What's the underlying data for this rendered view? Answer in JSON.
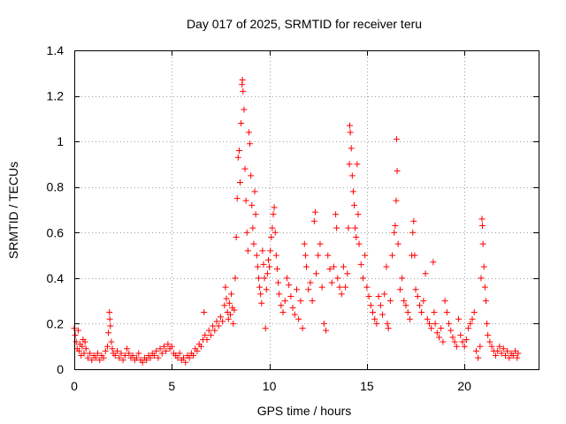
{
  "chart_data": {
    "type": "scatter",
    "title": "Day 017 of 2025, SRMTID for receiver teru",
    "xlabel": "GPS time / hours",
    "ylabel": "SRMTID / TECUs",
    "xlim": [
      0,
      23.8
    ],
    "ylim": [
      0,
      1.4
    ],
    "xticks": [
      0,
      5,
      10,
      15,
      20
    ],
    "xtick_labels": [
      "0",
      "5",
      "10",
      "15",
      "20"
    ],
    "yticks": [
      0,
      0.2,
      0.4,
      0.6,
      0.8,
      1.0,
      1.2,
      1.4
    ],
    "ytick_labels": [
      "0",
      "0.2",
      "0.4",
      "0.6",
      "0.8",
      "1",
      "1.2",
      "1.4"
    ],
    "grid": true,
    "marker": "plus",
    "color": "#ff0000",
    "series": [
      {
        "name": "SRMTID",
        "points": [
          [
            0.0,
            0.18
          ],
          [
            0.05,
            0.15
          ],
          [
            0.1,
            0.12
          ],
          [
            0.15,
            0.09
          ],
          [
            0.2,
            0.17
          ],
          [
            0.25,
            0.08
          ],
          [
            0.3,
            0.11
          ],
          [
            0.35,
            0.06
          ],
          [
            0.4,
            0.1
          ],
          [
            0.45,
            0.13
          ],
          [
            0.5,
            0.07
          ],
          [
            0.55,
            0.12
          ],
          [
            0.6,
            0.09
          ],
          [
            0.7,
            0.05
          ],
          [
            0.8,
            0.07
          ],
          [
            0.9,
            0.04
          ],
          [
            1.0,
            0.06
          ],
          [
            1.1,
            0.05
          ],
          [
            1.2,
            0.07
          ],
          [
            1.3,
            0.04
          ],
          [
            1.4,
            0.06
          ],
          [
            1.5,
            0.05
          ],
          [
            1.6,
            0.08
          ],
          [
            1.7,
            0.1
          ],
          [
            1.75,
            0.16
          ],
          [
            1.8,
            0.25
          ],
          [
            1.82,
            0.22
          ],
          [
            1.85,
            0.19
          ],
          [
            1.9,
            0.12
          ],
          [
            1.95,
            0.09
          ],
          [
            2.0,
            0.07
          ],
          [
            2.1,
            0.06
          ],
          [
            2.2,
            0.08
          ],
          [
            2.3,
            0.05
          ],
          [
            2.4,
            0.07
          ],
          [
            2.5,
            0.04
          ],
          [
            2.6,
            0.06
          ],
          [
            2.7,
            0.09
          ],
          [
            2.8,
            0.07
          ],
          [
            2.9,
            0.05
          ],
          [
            3.0,
            0.06
          ],
          [
            3.1,
            0.04
          ],
          [
            3.2,
            0.05
          ],
          [
            3.3,
            0.07
          ],
          [
            3.4,
            0.04
          ],
          [
            3.5,
            0.03
          ],
          [
            3.6,
            0.05
          ],
          [
            3.7,
            0.04
          ],
          [
            3.8,
            0.06
          ],
          [
            3.9,
            0.05
          ],
          [
            4.0,
            0.07
          ],
          [
            4.1,
            0.06
          ],
          [
            4.2,
            0.08
          ],
          [
            4.3,
            0.05
          ],
          [
            4.4,
            0.09
          ],
          [
            4.5,
            0.07
          ],
          [
            4.6,
            0.1
          ],
          [
            4.7,
            0.08
          ],
          [
            4.8,
            0.11
          ],
          [
            4.9,
            0.09
          ],
          [
            5.0,
            0.1
          ],
          [
            5.1,
            0.07
          ],
          [
            5.2,
            0.06
          ],
          [
            5.3,
            0.05
          ],
          [
            5.4,
            0.07
          ],
          [
            5.5,
            0.04
          ],
          [
            5.6,
            0.05
          ],
          [
            5.7,
            0.03
          ],
          [
            5.8,
            0.06
          ],
          [
            5.9,
            0.05
          ],
          [
            6.0,
            0.07
          ],
          [
            6.1,
            0.06
          ],
          [
            6.2,
            0.09
          ],
          [
            6.3,
            0.08
          ],
          [
            6.4,
            0.11
          ],
          [
            6.5,
            0.1
          ],
          [
            6.6,
            0.13
          ],
          [
            6.65,
            0.25
          ],
          [
            6.7,
            0.15
          ],
          [
            6.8,
            0.13
          ],
          [
            6.9,
            0.17
          ],
          [
            7.0,
            0.15
          ],
          [
            7.1,
            0.19
          ],
          [
            7.2,
            0.17
          ],
          [
            7.3,
            0.21
          ],
          [
            7.4,
            0.19
          ],
          [
            7.5,
            0.23
          ],
          [
            7.6,
            0.21
          ],
          [
            7.7,
            0.28
          ],
          [
            7.75,
            0.36
          ],
          [
            7.8,
            0.31
          ],
          [
            7.85,
            0.25
          ],
          [
            7.9,
            0.22
          ],
          [
            7.95,
            0.29
          ],
          [
            8.0,
            0.24
          ],
          [
            8.05,
            0.33
          ],
          [
            8.1,
            0.27
          ],
          [
            8.15,
            0.2
          ],
          [
            8.2,
            0.26
          ],
          [
            8.25,
            0.4
          ],
          [
            8.3,
            0.58
          ],
          [
            8.35,
            0.75
          ],
          [
            8.4,
            0.93
          ],
          [
            8.45,
            0.96
          ],
          [
            8.5,
            0.82
          ],
          [
            8.55,
            1.08
          ],
          [
            8.6,
            1.25
          ],
          [
            8.62,
            1.27
          ],
          [
            8.65,
            1.22
          ],
          [
            8.7,
            1.14
          ],
          [
            8.75,
            0.88
          ],
          [
            8.8,
            0.74
          ],
          [
            8.85,
            0.6
          ],
          [
            8.9,
            0.52
          ],
          [
            8.95,
            1.04
          ],
          [
            9.0,
            0.99
          ],
          [
            9.05,
            0.85
          ],
          [
            9.1,
            0.72
          ],
          [
            9.15,
            0.62
          ],
          [
            9.2,
            0.55
          ],
          [
            9.25,
            0.78
          ],
          [
            9.3,
            0.68
          ],
          [
            9.35,
            0.5
          ],
          [
            9.4,
            0.45
          ],
          [
            9.45,
            0.4
          ],
          [
            9.5,
            0.36
          ],
          [
            9.55,
            0.33
          ],
          [
            9.6,
            0.29
          ],
          [
            9.65,
            0.52
          ],
          [
            9.7,
            0.46
          ],
          [
            9.75,
            0.4
          ],
          [
            9.8,
            0.18
          ],
          [
            9.85,
            0.35
          ],
          [
            9.9,
            0.42
          ],
          [
            9.95,
            0.48
          ],
          [
            10.0,
            0.45
          ],
          [
            10.05,
            0.52
          ],
          [
            10.1,
            0.58
          ],
          [
            10.15,
            0.62
          ],
          [
            10.2,
            0.68
          ],
          [
            10.25,
            0.71
          ],
          [
            10.3,
            0.6
          ],
          [
            10.35,
            0.5
          ],
          [
            10.4,
            0.44
          ],
          [
            10.45,
            0.38
          ],
          [
            10.5,
            0.33
          ],
          [
            10.6,
            0.28
          ],
          [
            10.7,
            0.25
          ],
          [
            10.8,
            0.3
          ],
          [
            10.9,
            0.4
          ],
          [
            11.0,
            0.37
          ],
          [
            11.1,
            0.32
          ],
          [
            11.2,
            0.27
          ],
          [
            11.3,
            0.24
          ],
          [
            11.4,
            0.35
          ],
          [
            11.5,
            0.22
          ],
          [
            11.6,
            0.3
          ],
          [
            11.7,
            0.18
          ],
          [
            11.8,
            0.55
          ],
          [
            11.85,
            0.5
          ],
          [
            11.9,
            0.45
          ],
          [
            12.0,
            0.35
          ],
          [
            12.1,
            0.38
          ],
          [
            12.2,
            0.3
          ],
          [
            12.3,
            0.65
          ],
          [
            12.35,
            0.69
          ],
          [
            12.4,
            0.42
          ],
          [
            12.5,
            0.5
          ],
          [
            12.6,
            0.55
          ],
          [
            12.7,
            0.36
          ],
          [
            12.8,
            0.2
          ],
          [
            12.9,
            0.17
          ],
          [
            13.0,
            0.5
          ],
          [
            13.1,
            0.44
          ],
          [
            13.2,
            0.38
          ],
          [
            13.3,
            0.45
          ],
          [
            13.4,
            0.68
          ],
          [
            13.45,
            0.62
          ],
          [
            13.5,
            0.4
          ],
          [
            13.6,
            0.36
          ],
          [
            13.7,
            0.33
          ],
          [
            13.8,
            0.45
          ],
          [
            13.9,
            0.36
          ],
          [
            14.0,
            0.42
          ],
          [
            14.05,
            0.62
          ],
          [
            14.1,
            0.9
          ],
          [
            14.12,
            1.07
          ],
          [
            14.15,
            1.04
          ],
          [
            14.2,
            0.97
          ],
          [
            14.25,
            0.85
          ],
          [
            14.3,
            0.78
          ],
          [
            14.35,
            0.72
          ],
          [
            14.4,
            0.62
          ],
          [
            14.45,
            0.58
          ],
          [
            14.5,
            0.9
          ],
          [
            14.55,
            0.68
          ],
          [
            14.6,
            0.55
          ],
          [
            14.7,
            0.46
          ],
          [
            14.8,
            0.4
          ],
          [
            14.9,
            0.5
          ],
          [
            15.0,
            0.36
          ],
          [
            15.1,
            0.32
          ],
          [
            15.2,
            0.28
          ],
          [
            15.3,
            0.25
          ],
          [
            15.4,
            0.22
          ],
          [
            15.5,
            0.2
          ],
          [
            15.6,
            0.32
          ],
          [
            15.7,
            0.28
          ],
          [
            15.8,
            0.24
          ],
          [
            15.9,
            0.33
          ],
          [
            16.0,
            0.45
          ],
          [
            16.05,
            0.2
          ],
          [
            16.1,
            0.18
          ],
          [
            16.2,
            0.3
          ],
          [
            16.3,
            0.5
          ],
          [
            16.4,
            0.6
          ],
          [
            16.45,
            0.63
          ],
          [
            16.5,
            0.74
          ],
          [
            16.52,
            1.01
          ],
          [
            16.55,
            0.87
          ],
          [
            16.6,
            0.55
          ],
          [
            16.7,
            0.35
          ],
          [
            16.8,
            0.4
          ],
          [
            16.9,
            0.3
          ],
          [
            17.0,
            0.28
          ],
          [
            17.1,
            0.25
          ],
          [
            17.2,
            0.22
          ],
          [
            17.3,
            0.5
          ],
          [
            17.35,
            0.6
          ],
          [
            17.4,
            0.65
          ],
          [
            17.45,
            0.5
          ],
          [
            17.5,
            0.35
          ],
          [
            17.6,
            0.32
          ],
          [
            17.7,
            0.28
          ],
          [
            17.8,
            0.25
          ],
          [
            17.9,
            0.3
          ],
          [
            18.0,
            0.42
          ],
          [
            18.1,
            0.22
          ],
          [
            18.2,
            0.2
          ],
          [
            18.3,
            0.18
          ],
          [
            18.4,
            0.47
          ],
          [
            18.45,
            0.25
          ],
          [
            18.5,
            0.2
          ],
          [
            18.6,
            0.16
          ],
          [
            18.7,
            0.14
          ],
          [
            18.8,
            0.18
          ],
          [
            18.9,
            0.12
          ],
          [
            19.0,
            0.3
          ],
          [
            19.1,
            0.25
          ],
          [
            19.2,
            0.2
          ],
          [
            19.3,
            0.17
          ],
          [
            19.4,
            0.14
          ],
          [
            19.5,
            0.12
          ],
          [
            19.6,
            0.1
          ],
          [
            19.7,
            0.22
          ],
          [
            19.8,
            0.15
          ],
          [
            19.9,
            0.12
          ],
          [
            20.0,
            0.1
          ],
          [
            20.1,
            0.13
          ],
          [
            20.2,
            0.18
          ],
          [
            20.3,
            0.2
          ],
          [
            20.4,
            0.22
          ],
          [
            20.5,
            0.25
          ],
          [
            20.6,
            0.08
          ],
          [
            20.7,
            0.05
          ],
          [
            20.8,
            0.1
          ],
          [
            20.85,
            0.4
          ],
          [
            20.9,
            0.66
          ],
          [
            20.92,
            0.63
          ],
          [
            20.95,
            0.55
          ],
          [
            21.0,
            0.45
          ],
          [
            21.05,
            0.36
          ],
          [
            21.1,
            0.3
          ],
          [
            21.15,
            0.2
          ],
          [
            21.2,
            0.15
          ],
          [
            21.3,
            0.12
          ],
          [
            21.4,
            0.1
          ],
          [
            21.5,
            0.08
          ],
          [
            21.6,
            0.06
          ],
          [
            21.7,
            0.08
          ],
          [
            21.8,
            0.1
          ],
          [
            21.9,
            0.07
          ],
          [
            22.0,
            0.09
          ],
          [
            22.1,
            0.06
          ],
          [
            22.2,
            0.08
          ],
          [
            22.3,
            0.05
          ],
          [
            22.4,
            0.07
          ],
          [
            22.5,
            0.06
          ],
          [
            22.6,
            0.08
          ],
          [
            22.7,
            0.05
          ],
          [
            22.75,
            0.07
          ]
        ]
      }
    ]
  }
}
